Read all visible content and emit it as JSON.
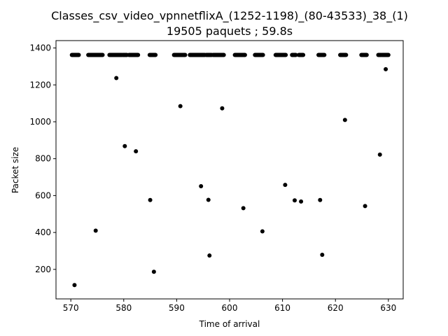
{
  "chart_data": {
    "type": "scatter",
    "title": "Classes_csv_video_vpnnetflixA_(1252-1198)_(80-43533)_38_(1)",
    "subtitle": "19505 paquets ; 59.8s",
    "xlabel": "Time of arrival",
    "ylabel": "Packet size",
    "xlim": [
      567.2,
      632.8
    ],
    "ylim": [
      40,
      1440
    ],
    "xticks": [
      570,
      580,
      590,
      600,
      610,
      620,
      630
    ],
    "yticks": [
      200,
      400,
      600,
      800,
      1000,
      1200,
      1400
    ],
    "marker_color": "#000000",
    "grid": false,
    "series": [
      {
        "name": "",
        "top_band": {
          "y": 1362,
          "segments": [
            [
              570.2,
              571.5
            ],
            [
              573.3,
              576.0
            ],
            [
              577.3,
              579.6
            ],
            [
              579.8,
              580.6
            ],
            [
              581.0,
              582.7
            ],
            [
              584.9,
              586.0
            ],
            [
              589.5,
              591.6
            ],
            [
              592.5,
              595.3
            ],
            [
              595.6,
              596.6
            ],
            [
              596.9,
              598.9
            ],
            [
              601.0,
              602.9
            ],
            [
              604.8,
              606.3
            ],
            [
              608.7,
              610.6
            ],
            [
              611.8,
              612.5
            ],
            [
              613.1,
              613.9
            ],
            [
              616.8,
              617.9
            ],
            [
              620.9,
              622.0
            ],
            [
              624.9,
              625.9
            ],
            [
              628.1,
              628.6
            ],
            [
              628.8,
              630.0
            ]
          ]
        },
        "points": [
          [
            570.7,
            115
          ],
          [
            574.7,
            410
          ],
          [
            578.6,
            1237
          ],
          [
            580.2,
            868
          ],
          [
            582.3,
            840
          ],
          [
            585.0,
            576
          ],
          [
            585.7,
            187
          ],
          [
            590.7,
            1085
          ],
          [
            594.6,
            651
          ],
          [
            596.0,
            577
          ],
          [
            596.2,
            275
          ],
          [
            598.6,
            1073
          ],
          [
            602.6,
            532
          ],
          [
            606.2,
            406
          ],
          [
            610.5,
            658
          ],
          [
            612.3,
            574
          ],
          [
            613.5,
            568
          ],
          [
            617.1,
            576
          ],
          [
            617.5,
            279
          ],
          [
            621.8,
            1010
          ],
          [
            625.6,
            543
          ],
          [
            628.4,
            822
          ],
          [
            629.5,
            1285
          ]
        ]
      }
    ]
  }
}
